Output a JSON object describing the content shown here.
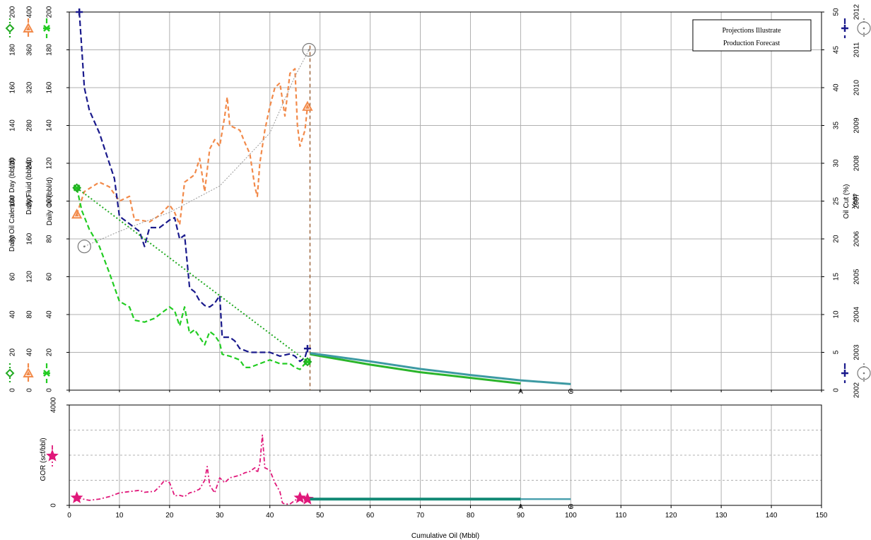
{
  "chart_data": [
    {
      "type": "line",
      "panel": "production",
      "xlabel": "Cumulative Oil (Mbbl)",
      "xlim": [
        0,
        150
      ],
      "x_ticks": [
        "0",
        "10",
        "20",
        "30",
        "40",
        "50",
        "60",
        "70",
        "80",
        "90",
        "100",
        "110",
        "120",
        "130",
        "140",
        "150"
      ],
      "y_axes": [
        {
          "label": "Daily Oil Calendar Day (bbl/d)",
          "range": [
            0,
            200
          ],
          "ticks": [
            "0",
            "20",
            "40",
            "60",
            "80",
            "100",
            "120",
            "140",
            "160",
            "180",
            "200"
          ],
          "color": "#22aa22"
        },
        {
          "label": "Daily Fluid (bbl/d)",
          "range": [
            0,
            400
          ],
          "ticks": [
            "0",
            "40",
            "80",
            "120",
            "160",
            "200",
            "240",
            "280",
            "320",
            "360",
            "400"
          ],
          "color": "#f28a4a"
        },
        {
          "label": "Daily Oil (bbl/d)",
          "range": [
            0,
            200
          ],
          "ticks": [
            "0",
            "20",
            "40",
            "60",
            "80",
            "100",
            "120",
            "140",
            "160",
            "180",
            "200"
          ],
          "color": "#22cc22"
        },
        {
          "label": "Oil Cut (%)",
          "range": [
            0,
            50
          ],
          "ticks": [
            "0",
            "5",
            "10",
            "15",
            "20",
            "25",
            "30",
            "35",
            "40",
            "45",
            "50"
          ],
          "color": "#1a1a8c"
        },
        {
          "label": "Year",
          "range": [
            2002,
            2012
          ],
          "ticks": [
            "2002",
            "2003",
            "2004",
            "2005",
            "2006",
            "2007",
            "2008",
            "2009",
            "2010",
            "2011",
            "2012"
          ],
          "color": "#888888"
        }
      ],
      "legend": {
        "lines": [
          "Projections Illustrate",
          "Production Forecast"
        ],
        "position": "top-right"
      },
      "series": [
        {
          "axis": 1,
          "color": "#f28a4a",
          "dash": "6,4",
          "width": 2.2,
          "marker": "triangle",
          "points": [
            [
              1.5,
              186
            ],
            [
              3,
              210
            ],
            [
              6,
              220
            ],
            [
              8,
              215
            ],
            [
              10,
              200
            ],
            [
              12,
              205
            ],
            [
              13,
              180
            ],
            [
              14,
              180
            ],
            [
              16,
              178
            ],
            [
              18,
              185
            ],
            [
              20,
              196
            ],
            [
              21,
              188
            ],
            [
              22,
              175
            ],
            [
              23,
              220
            ],
            [
              25,
              228
            ],
            [
              26,
              245
            ],
            [
              27,
              210
            ],
            [
              28,
              255
            ],
            [
              29,
              265
            ],
            [
              30,
              258
            ],
            [
              31,
              290
            ],
            [
              31.5,
              310
            ],
            [
              32,
              280
            ],
            [
              34,
              275
            ],
            [
              35,
              262
            ],
            [
              36,
              250
            ],
            [
              37,
              215
            ],
            [
              37.5,
              205
            ],
            [
              38,
              240
            ],
            [
              39,
              275
            ],
            [
              40,
              300
            ],
            [
              41,
              320
            ],
            [
              42,
              325
            ],
            [
              43,
              290
            ],
            [
              44,
              335
            ],
            [
              45,
              340
            ],
            [
              45.5,
              280
            ],
            [
              46,
              258
            ],
            [
              47,
              275
            ],
            [
              47.5,
              300
            ]
          ]
        },
        {
          "axis": 3,
          "color": "#1a1a8c",
          "dash": "8,4",
          "width": 2.2,
          "marker": "plus",
          "points": [
            [
              2,
              50
            ],
            [
              3,
              40
            ],
            [
              4,
              37
            ],
            [
              6,
              34
            ],
            [
              8,
              30
            ],
            [
              9,
              28
            ],
            [
              10,
              23
            ],
            [
              12,
              22
            ],
            [
              14,
              21
            ],
            [
              15,
              19
            ],
            [
              16,
              21.5
            ],
            [
              18,
              21.5
            ],
            [
              20,
              22.5
            ],
            [
              21,
              22.8
            ],
            [
              22,
              20
            ],
            [
              23,
              20.5
            ],
            [
              24,
              13.5
            ],
            [
              25,
              13
            ],
            [
              26,
              11.8
            ],
            [
              27,
              11.2
            ],
            [
              28,
              11
            ],
            [
              29,
              11.5
            ],
            [
              30,
              12.5
            ],
            [
              30.5,
              7
            ],
            [
              32,
              7
            ],
            [
              33,
              6.5
            ],
            [
              34,
              5.5
            ],
            [
              36,
              5
            ],
            [
              38,
              5
            ],
            [
              40,
              5
            ],
            [
              42,
              4.5
            ],
            [
              44,
              4.8
            ],
            [
              45,
              4.5
            ],
            [
              46,
              3.8
            ],
            [
              47,
              4.3
            ],
            [
              47.5,
              5.5
            ]
          ]
        },
        {
          "axis": 2,
          "color": "#22cc22",
          "dash": "7,4",
          "width": 2.2,
          "marker": "x",
          "points": [
            [
              1.5,
              107
            ],
            [
              2.5,
              95
            ],
            [
              4,
              85
            ],
            [
              6,
              76
            ],
            [
              8,
              62
            ],
            [
              10,
              47
            ],
            [
              12,
              44
            ],
            [
              13,
              37
            ],
            [
              15,
              36
            ],
            [
              17,
              38
            ],
            [
              18,
              40
            ],
            [
              20,
              44
            ],
            [
              21,
              42
            ],
            [
              22,
              34
            ],
            [
              23,
              44
            ],
            [
              24,
              30
            ],
            [
              25,
              32
            ],
            [
              26,
              28
            ],
            [
              27,
              24
            ],
            [
              28,
              31
            ],
            [
              29,
              29
            ],
            [
              30,
              25
            ],
            [
              30.5,
              19
            ],
            [
              32,
              18
            ],
            [
              34,
              16
            ],
            [
              35,
              12
            ],
            [
              36,
              12
            ],
            [
              38,
              14
            ],
            [
              40,
              16
            ],
            [
              42,
              14
            ],
            [
              44,
              14
            ],
            [
              45,
              12
            ],
            [
              46,
              11
            ],
            [
              47,
              14
            ],
            [
              47.5,
              15
            ]
          ]
        },
        {
          "axis": 0,
          "color": "#22aa22",
          "dash": "2,3",
          "width": 2,
          "marker": "diamond",
          "points": [
            [
              1.5,
              107
            ],
            [
              47.5,
              15
            ]
          ]
        },
        {
          "axis": 4,
          "color": "#999999",
          "dash": "2,2",
          "width": 1,
          "marker": "circle",
          "points": [
            [
              3,
              2005.8
            ],
            [
              10,
              2006.2
            ],
            [
              20,
              2006.7
            ],
            [
              30,
              2007.4
            ],
            [
              40,
              2008.8
            ],
            [
              45,
              2010.3
            ],
            [
              47.8,
              2011.0
            ]
          ]
        },
        {
          "axis": 2,
          "color": "#2bb52b",
          "dash": "",
          "width": 3,
          "marker": "none",
          "forecast": true,
          "points": [
            [
              48,
              19
            ],
            [
              60,
              13.5
            ],
            [
              70,
              9.5
            ],
            [
              80,
              6.5
            ],
            [
              90,
              3.5
            ]
          ]
        },
        {
          "axis": 3,
          "color": "#3d9aa3",
          "dash": "",
          "width": 3,
          "marker": "none",
          "forecast": true,
          "points": [
            [
              48,
              4.9
            ],
            [
              60,
              3.8
            ],
            [
              70,
              2.8
            ],
            [
              80,
              2.0
            ],
            [
              90,
              1.3
            ],
            [
              100,
              0.8
            ]
          ]
        }
      ],
      "endpoint_labels": [
        {
          "x": 90,
          "text": "A"
        },
        {
          "x": 100,
          "text": "G"
        }
      ],
      "vline_x": 48,
      "grid": true
    },
    {
      "type": "line",
      "panel": "gor",
      "xlabel": "Cumulative Oil (Mbbl)",
      "xlim": [
        0,
        150
      ],
      "ylabel": "GOR (scf/bbl)",
      "ylim": [
        0,
        4000
      ],
      "y_ticks": [
        "0",
        "4000"
      ],
      "series": [
        {
          "color": "#e0187a",
          "dash": "6,3,2,3",
          "width": 1.8,
          "marker": "star",
          "points": [
            [
              1.5,
              300
            ],
            [
              4,
              200
            ],
            [
              6,
              250
            ],
            [
              8,
              350
            ],
            [
              10,
              500
            ],
            [
              12,
              550
            ],
            [
              14,
              600
            ],
            [
              15,
              520
            ],
            [
              17,
              560
            ],
            [
              18,
              750
            ],
            [
              19,
              1000
            ],
            [
              20,
              900
            ],
            [
              21,
              380
            ],
            [
              22,
              400
            ],
            [
              23,
              350
            ],
            [
              24,
              500
            ],
            [
              25,
              550
            ],
            [
              26,
              650
            ],
            [
              27,
              1000
            ],
            [
              27.5,
              1550
            ],
            [
              28,
              800
            ],
            [
              29,
              500
            ],
            [
              30,
              1100
            ],
            [
              31,
              900
            ],
            [
              32,
              1100
            ],
            [
              34,
              1200
            ],
            [
              35,
              1300
            ],
            [
              36,
              1350
            ],
            [
              37,
              1500
            ],
            [
              37.5,
              1300
            ],
            [
              38,
              1650
            ],
            [
              38.5,
              2800
            ],
            [
              39,
              1500
            ],
            [
              40,
              1400
            ],
            [
              41,
              900
            ],
            [
              42,
              550
            ],
            [
              42.5,
              100
            ],
            [
              43,
              50
            ],
            [
              44,
              50
            ],
            [
              45,
              200
            ],
            [
              46,
              300
            ],
            [
              47,
              200
            ],
            [
              47.5,
              250
            ]
          ]
        },
        {
          "color": "#148a76",
          "dash": "",
          "width": 4,
          "marker": "none",
          "forecast": true,
          "points": [
            [
              48,
              250
            ],
            [
              90,
              250
            ]
          ]
        },
        {
          "color": "#4aa0ae",
          "dash": "",
          "width": 2.5,
          "marker": "none",
          "forecast": true,
          "points": [
            [
              90,
              250
            ],
            [
              100,
              250
            ]
          ]
        }
      ],
      "endpoint_labels": [
        {
          "x": 90,
          "text": "A"
        },
        {
          "x": 100,
          "text": "G"
        }
      ]
    }
  ]
}
